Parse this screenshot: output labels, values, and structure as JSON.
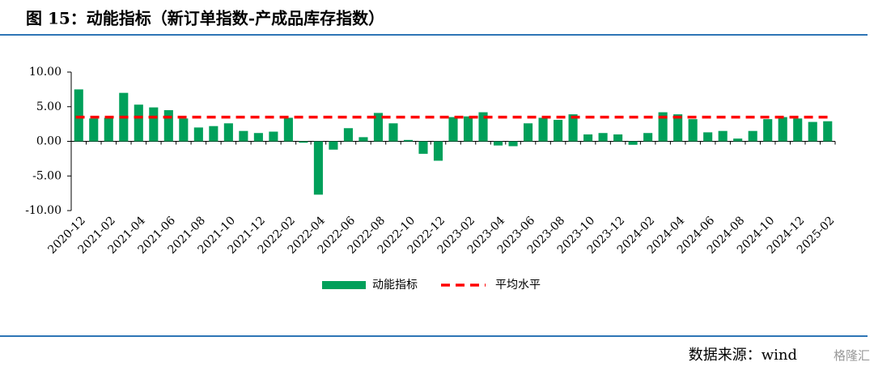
{
  "chart_data": {
    "type": "bar",
    "title": "图 15：动能指标（新订单指数-产成品库存指数）",
    "source": "数据来源：wind",
    "watermark": "格隆汇",
    "categories": [
      "2020-12",
      null,
      "2021-02",
      null,
      "2021-04",
      null,
      "2021-06",
      null,
      "2021-08",
      null,
      "2021-10",
      null,
      "2021-12",
      null,
      "2022-02",
      null,
      "2022-04",
      null,
      "2022-06",
      null,
      "2022-08",
      null,
      "2022-10",
      null,
      "2022-12",
      null,
      "2023-02",
      null,
      "2023-04",
      null,
      "2023-06",
      null,
      "2023-08",
      null,
      "2023-10",
      null,
      "2023-12",
      null,
      "2024-02",
      null,
      "2024-04",
      null,
      "2024-06",
      null,
      "2024-08",
      null,
      "2024-10",
      null,
      "2024-12",
      null,
      "2025-02"
    ],
    "series": [
      {
        "name": "动能指标",
        "color": "#00a05a",
        "values": [
          7.5,
          3.3,
          3.4,
          7.0,
          5.3,
          4.9,
          4.5,
          3.3,
          2.0,
          2.2,
          2.6,
          1.5,
          1.2,
          1.4,
          3.4,
          -0.2,
          -7.7,
          -1.2,
          1.9,
          0.6,
          4.1,
          2.6,
          0.2,
          -1.8,
          -2.8,
          3.5,
          3.6,
          4.2,
          -0.6,
          -0.7,
          2.6,
          3.4,
          3.1,
          3.9,
          1.0,
          1.2,
          1.0,
          -0.5,
          1.2,
          4.2,
          3.9,
          3.2,
          1.3,
          1.5,
          0.4,
          1.5,
          3.2,
          3.5,
          3.3,
          2.8,
          2.9
        ]
      }
    ],
    "reference_lines": [
      {
        "name": "平均水平",
        "value": 3.5,
        "color": "#ff0000",
        "style": "dashed"
      }
    ],
    "ylim": [
      -10,
      10
    ],
    "yticks": [
      {
        "value": -10,
        "label": "-10.00"
      },
      {
        "value": -5,
        "label": "-5.00"
      },
      {
        "value": 0,
        "label": "0.00"
      },
      {
        "value": 5,
        "label": "5.00"
      },
      {
        "value": 10,
        "label": "10.00"
      }
    ],
    "grid": false
  }
}
